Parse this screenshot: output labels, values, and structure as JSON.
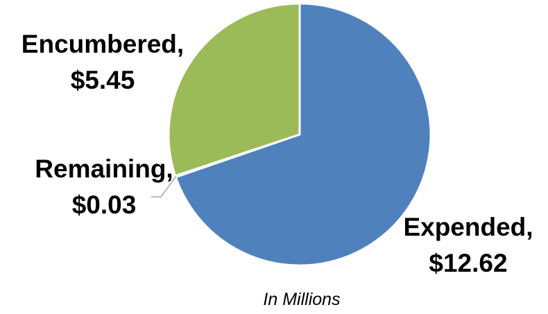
{
  "chart_data": {
    "type": "pie",
    "slices": [
      {
        "name": "Expended",
        "value": 12.62,
        "label": "Expended,",
        "value_label": "$12.62",
        "color": "#4f81bd"
      },
      {
        "name": "Remaining",
        "value": 0.03,
        "label": "Remaining,",
        "value_label": "$0.03",
        "color": "#c0504d"
      },
      {
        "name": "Encumbered",
        "value": 5.45,
        "label": "Encumbered,",
        "value_label": "$5.45",
        "color": "#9bbb59"
      }
    ],
    "note": "In Millions",
    "legend": "none"
  }
}
